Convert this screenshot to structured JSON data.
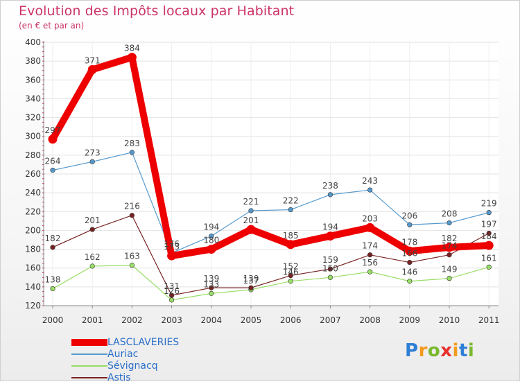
{
  "title": "Evolution des Impôts locaux par Habitant",
  "subtitle": "(en € et par an)",
  "logo": {
    "letters": [
      {
        "ch": "P",
        "color": "#2e7fd6"
      },
      {
        "ch": "r",
        "color": "#f39a1e"
      },
      {
        "ch": "o",
        "color": "#7ab82e"
      },
      {
        "ch": "x",
        "color": "#e8302e"
      },
      {
        "ch": "i",
        "color": "#f39a1e"
      },
      {
        "ch": "t",
        "color": "#2e7fd6"
      },
      {
        "ch": "i",
        "color": "#7ab82e"
      }
    ]
  },
  "colors": {
    "title": "#cc3366",
    "axis_text": "#333333",
    "grid": "#e2e2e2"
  },
  "chart_data": {
    "type": "line",
    "title": "Evolution des Impôts locaux par Habitant",
    "subtitle": "(en € et par an)",
    "xlabel": "",
    "ylabel": "",
    "ylim": [
      120,
      400
    ],
    "yticks": [
      120,
      140,
      160,
      180,
      200,
      220,
      240,
      260,
      280,
      300,
      320,
      340,
      360,
      380,
      400
    ],
    "categories": [
      "2000",
      "2001",
      "2002",
      "2003",
      "2004",
      "2005",
      "2006",
      "2007",
      "2008",
      "2009",
      "2010",
      "2011"
    ],
    "legend_position": "bottom-left",
    "series": [
      {
        "name": "LASCLAVERIES",
        "color": "#ee0000",
        "emphasis": true,
        "values": [
          297,
          371,
          384,
          173,
          180,
          201,
          185,
          194,
          203,
          178,
          182,
          184
        ],
        "labels": [
          "297",
          "371",
          "384",
          "173",
          "180",
          "201",
          "185",
          "194",
          "203",
          "178",
          "182",
          "184"
        ]
      },
      {
        "name": "Auriac",
        "color": "#5599cc",
        "emphasis": false,
        "values": [
          264,
          273,
          283,
          176,
          194,
          221,
          222,
          238,
          243,
          206,
          208,
          219
        ],
        "labels": [
          "264",
          "273",
          "283",
          "176",
          "194",
          "221",
          "222",
          "238",
          "243",
          "206",
          "208",
          "219"
        ]
      },
      {
        "name": "Sévignacq",
        "color": "#99dd66",
        "emphasis": false,
        "values": [
          138,
          162,
          163,
          126,
          133,
          137,
          146,
          150,
          156,
          146,
          149,
          161
        ],
        "labels": [
          "138",
          "162",
          "163",
          "126",
          "133",
          "137",
          "146",
          "150",
          "156",
          "146",
          "149",
          "161"
        ]
      },
      {
        "name": "Astis",
        "color": "#772222",
        "emphasis": false,
        "values": [
          182,
          201,
          216,
          131,
          139,
          139,
          152,
          159,
          174,
          166,
          174,
          197
        ],
        "labels": [
          "182",
          "201",
          "216",
          "131",
          "139",
          "139",
          "152",
          "159",
          "174",
          "166",
          "174",
          "197"
        ]
      }
    ]
  }
}
